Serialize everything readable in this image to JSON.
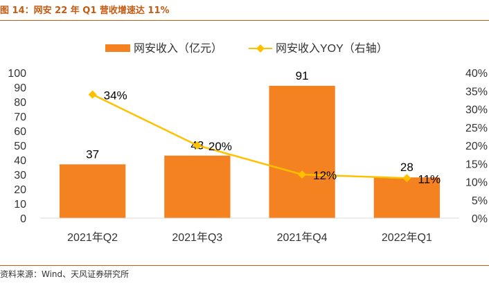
{
  "figure": {
    "title": "图 14：网安 22 年 Q1 营收增速达 11%",
    "source": "资料来源：Wind、天风证券研究所"
  },
  "colors": {
    "bar": "#f58220",
    "line": "#ffc000",
    "accent": "#c55a11",
    "text": "#333333",
    "axis": "#d9d9d9"
  },
  "chart_data": {
    "type": "bar",
    "categories": [
      "2021年Q2",
      "2021年Q3",
      "2021年Q4",
      "2022年Q1"
    ],
    "series": [
      {
        "name": "网安收入（亿元）",
        "type": "bar",
        "axis": "left",
        "values": [
          37,
          43,
          91,
          28
        ],
        "labels": [
          "37",
          "43",
          "91",
          "28"
        ]
      },
      {
        "name": "网安收入YOY（右轴）",
        "type": "line",
        "axis": "right",
        "values": [
          0.34,
          0.2,
          0.12,
          0.11
        ],
        "labels": [
          "34%",
          "20%",
          "12%",
          "11%"
        ]
      }
    ],
    "ylim": [
      0,
      100
    ],
    "yticks": [
      "0",
      "10",
      "20",
      "30",
      "40",
      "50",
      "60",
      "70",
      "80",
      "90",
      "100"
    ],
    "y2lim": [
      0,
      0.4
    ],
    "y2ticks": [
      "0%",
      "5%",
      "10%",
      "15%",
      "20%",
      "25%",
      "30%",
      "35%",
      "40%"
    ],
    "legend_position": "top-center",
    "grid": false
  }
}
